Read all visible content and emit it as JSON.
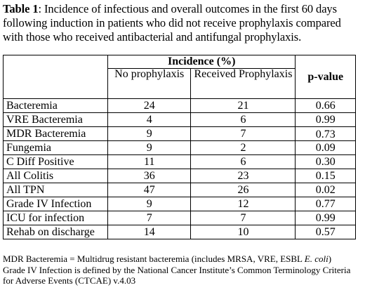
{
  "caption": {
    "label": "Table 1",
    "text": ": Incidence of infectious and overall outcomes in the first 60 days following induction in patients who did not receive prophylaxis compared with those who received antibacterial and antifungal prophylaxis."
  },
  "table": {
    "group_header": "Incidence (%)",
    "pvalue_header": "p-value",
    "col_no_prophylaxis": "No prophylaxis",
    "col_received_prophylaxis": "Received Prophylaxis",
    "rows": [
      {
        "name": "Bacteremia",
        "no": "24",
        "yes": "21",
        "p": "0.66"
      },
      {
        "name": "VRE Bacteremia",
        "no": "4",
        "yes": "6",
        "p": "0.99"
      },
      {
        "name": "MDR Bacteremia",
        "no": "9",
        "yes": "7",
        "p": "0.73"
      },
      {
        "name": "Fungemia",
        "no": "9",
        "yes": "2",
        "p": "0.09"
      },
      {
        "name": "C Diff Positive",
        "no": "11",
        "yes": "6",
        "p": "0.30"
      },
      {
        "name": "All Colitis",
        "no": "36",
        "yes": "23",
        "p": "0.15"
      },
      {
        "name": "All TPN",
        "no": "47",
        "yes": "26",
        "p": "0.02"
      },
      {
        "name": "Grade IV Infection",
        "no": "9",
        "yes": "12",
        "p": "0.77"
      },
      {
        "name": "ICU for infection",
        "no": "7",
        "yes": "7",
        "p": "0.99"
      },
      {
        "name": "Rehab on discharge",
        "no": "14",
        "yes": "10",
        "p": "0.57"
      }
    ]
  },
  "footnotes": {
    "line1_text": "MDR Bacteremia = Multidrug resistant bacteremia (includes MRSA, VRE, ESBL ",
    "line1_italic": "E. coli",
    "line1_end": ")",
    "line2": "Grade IV Infection is defined by the National Cancer Institute’s Common Terminology Criteria for Adverse Events (CTCAE) v.4.03"
  }
}
